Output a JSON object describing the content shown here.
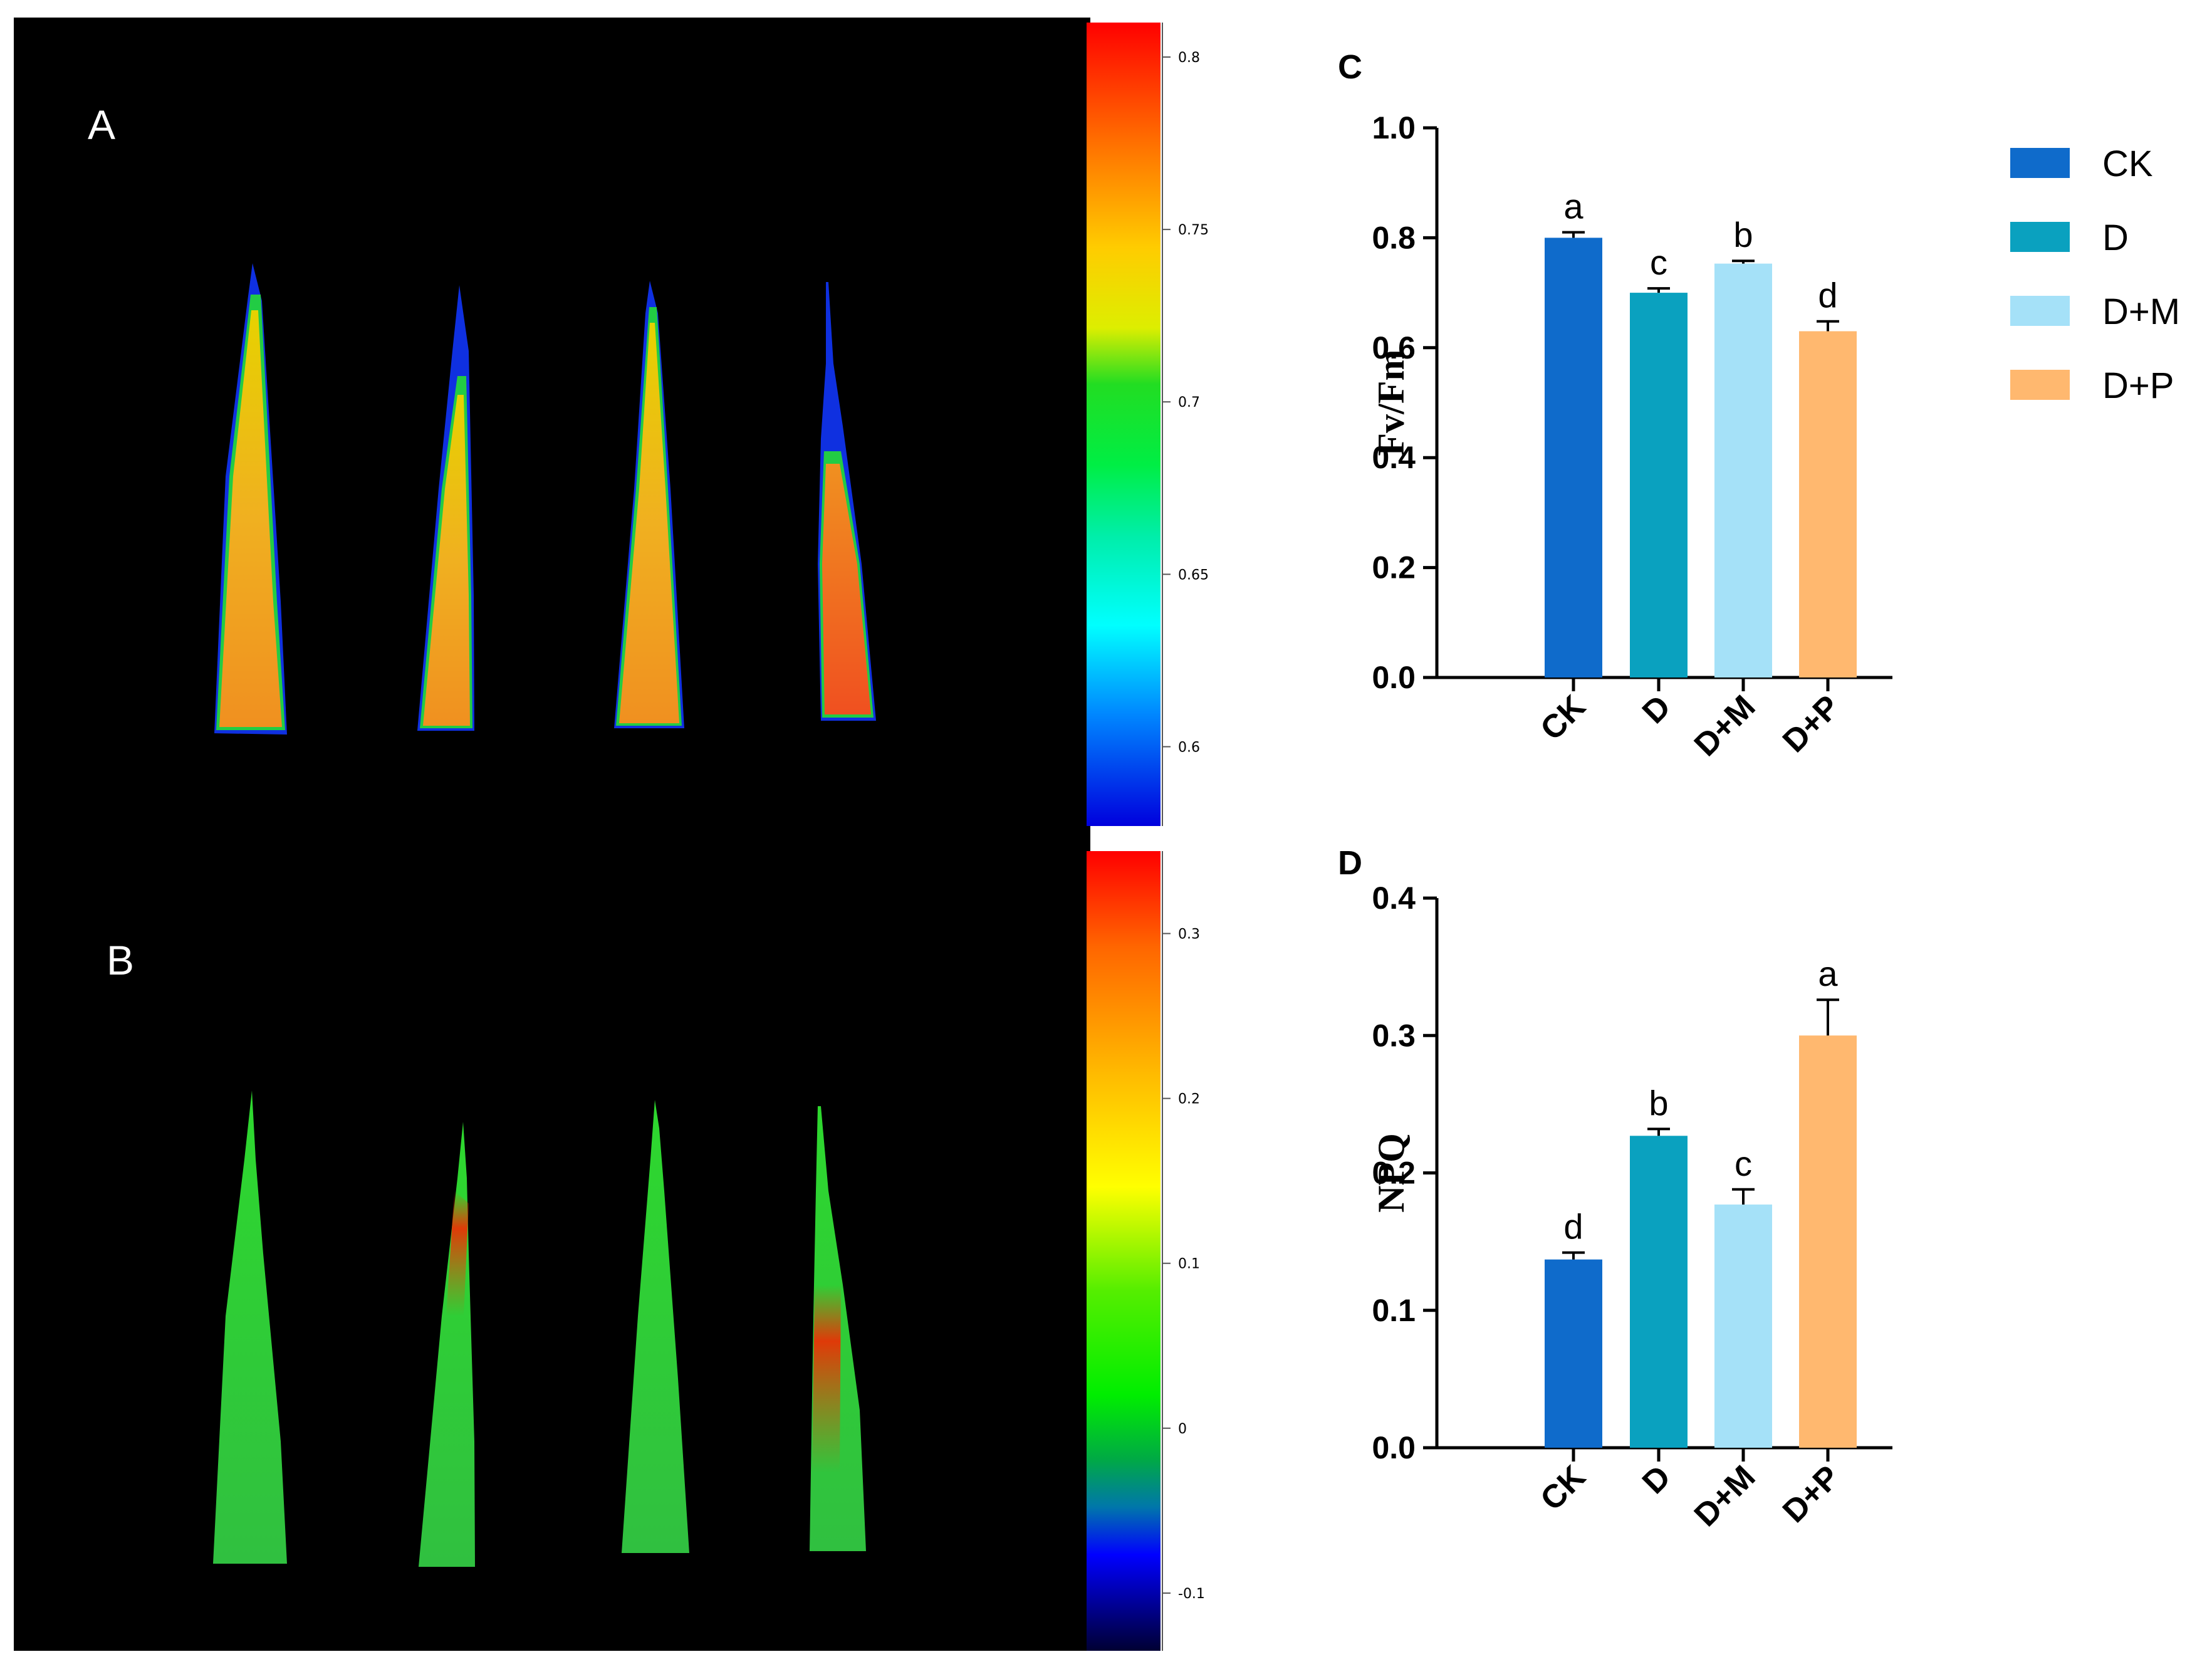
{
  "images": {
    "panel_a": {
      "label": "A",
      "colorbar_ticks": [
        "0.8",
        "0.75",
        "0.7",
        "0.65",
        "0.6"
      ],
      "colorbar_values": [
        0.8,
        0.75,
        0.7,
        0.65,
        0.6
      ],
      "range": [
        0.577,
        0.81
      ]
    },
    "panel_b": {
      "label": "B",
      "colorbar_ticks": [
        "0.3",
        "0.2",
        "0.1",
        "0",
        "-0.1"
      ],
      "colorbar_values": [
        0.3,
        0.2,
        0.1,
        0,
        -0.1
      ],
      "range": [
        -0.135,
        0.35
      ]
    }
  },
  "legend": {
    "items": [
      {
        "label": "CK",
        "color": "#0f6bcb"
      },
      {
        "label": "D",
        "color": "#0aa1bf"
      },
      {
        "label": "D+M",
        "color": "#a5e1f8"
      },
      {
        "label": "D+P",
        "color": "#ffb86f"
      }
    ]
  },
  "chart_data": [
    {
      "type": "bar",
      "panel": "C",
      "title": "",
      "xlabel": "",
      "ylabel": "Fv/Fm",
      "categories": [
        "CK",
        "D",
        "D+M",
        "D+P"
      ],
      "values": [
        0.8,
        0.7,
        0.753,
        0.63
      ],
      "errors": [
        0.01,
        0.008,
        0.005,
        0.018
      ],
      "significance": [
        "a",
        "c",
        "b",
        "d"
      ],
      "yticks": [
        "0.0",
        "0.2",
        "0.4",
        "0.6",
        "0.8",
        "1.0"
      ],
      "ylim": [
        0,
        1.0
      ],
      "colors": [
        "#0f6bcb",
        "#0aa1bf",
        "#a5e1f8",
        "#ffb86f"
      ]
    },
    {
      "type": "bar",
      "panel": "D",
      "title": "",
      "xlabel": "",
      "ylabel": "NPQ",
      "categories": [
        "CK",
        "D",
        "D+M",
        "D+P"
      ],
      "values": [
        0.137,
        0.227,
        0.177,
        0.3
      ],
      "errors": [
        0.005,
        0.005,
        0.011,
        0.026
      ],
      "significance": [
        "d",
        "b",
        "c",
        "a"
      ],
      "yticks": [
        "0.0",
        "0.1",
        "0.2",
        "0.3",
        "0.4"
      ],
      "ylim": [
        0,
        0.4
      ],
      "colors": [
        "#0f6bcb",
        "#0aa1bf",
        "#a5e1f8",
        "#ffb86f"
      ]
    }
  ]
}
